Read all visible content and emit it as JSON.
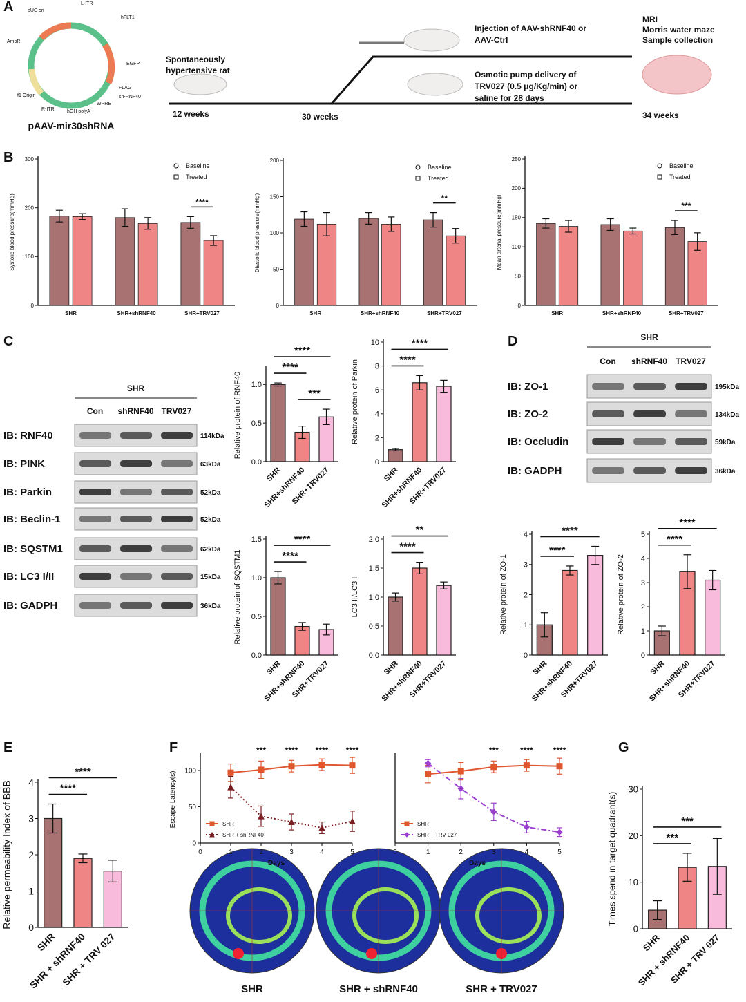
{
  "panels": [
    "A",
    "B",
    "C",
    "D",
    "E",
    "F",
    "G"
  ],
  "schematic": {
    "plasmid_name": "pAAV-mir30shRNA",
    "plasmid_labels": [
      "pUC ori",
      "L-ITR",
      "hFLT1",
      "EGFP",
      "FLAG",
      "sh-RNF40",
      "WPRE",
      "hGH polyA",
      "R-ITR",
      "f1 Origin",
      "AmpR"
    ],
    "rat_label": [
      "Spontaneously",
      "hypertensive rat"
    ],
    "weeks": [
      "12 weeks",
      "30 weeks",
      "34 weeks"
    ],
    "injection": [
      "Injection of AAV-shRNF40 or",
      "AAV-Ctrl"
    ],
    "pump": [
      "Osmotic pump delivery of",
      "TRV027 (0.5 μg/Kg/min) or",
      "saline for 28 days"
    ],
    "outcomes": [
      "MRI",
      "Morris water maze",
      "Sample collection"
    ]
  },
  "blots_c": {
    "group": "SHR",
    "lanes": [
      "Con",
      "shRNF40",
      "TRV027"
    ],
    "rows": [
      {
        "label": "IB: RNF40",
        "size": "114kDa"
      },
      {
        "label": "IB: PINK",
        "size": "63kDa"
      },
      {
        "label": "IB: Parkin",
        "size": "52kDa"
      },
      {
        "label": "IB: Beclin-1",
        "size": "52kDa"
      },
      {
        "label": "IB: SQSTM1",
        "size": "62kDa"
      },
      {
        "label": "IB: LC3 I/II",
        "size": "15kDa"
      },
      {
        "label": "IB: GADPH",
        "size": "36kDa"
      }
    ]
  },
  "blots_d": {
    "group": "SHR",
    "lanes": [
      "Con",
      "shRNF40",
      "TRV027"
    ],
    "rows": [
      {
        "label": "IB: ZO-1",
        "size": "195kDa"
      },
      {
        "label": "IB: ZO-2",
        "size": "134kDa"
      },
      {
        "label": "IB: Occludin",
        "size": "59kDa"
      },
      {
        "label": "IB: GADPH",
        "size": "36kDa"
      }
    ]
  },
  "heatmaps": [
    "SHR",
    "SHR + shRNF40",
    "SHR + TRV027"
  ],
  "chart_data": [
    {
      "type": "grouped_bar",
      "ylabel": "Systolic blood pressure(mmHg)",
      "categories": [
        "SHR",
        "SHR+shRNF40",
        "SHR+TRV027"
      ],
      "series": [
        {
          "name": "Baseline",
          "color": "#a87272",
          "marker": "circle",
          "values": [
            183,
            180,
            170
          ],
          "errors": [
            12,
            18,
            12
          ]
        },
        {
          "name": "Treated",
          "color": "#f08585",
          "marker": "square",
          "values": [
            182,
            168,
            133
          ],
          "errors": [
            6,
            12,
            10
          ]
        }
      ],
      "ylim": [
        0,
        300
      ],
      "yticks": [
        0,
        100,
        200,
        300
      ],
      "annotations": [
        {
          "text": "****",
          "category": "SHR+TRV027"
        }
      ]
    },
    {
      "type": "grouped_bar",
      "ylabel": "Diastolic blood pressure(mmHg)",
      "categories": [
        "SHR",
        "SHR+shRNF40",
        "SHR+TRV027"
      ],
      "series": [
        {
          "name": "Baseline",
          "color": "#a87272",
          "marker": "circle",
          "values": [
            119,
            120,
            118
          ],
          "errors": [
            10,
            8,
            10
          ]
        },
        {
          "name": "Treated",
          "color": "#f08585",
          "marker": "square",
          "values": [
            112,
            112,
            96
          ],
          "errors": [
            16,
            10,
            10
          ]
        }
      ],
      "ylim": [
        0,
        200
      ],
      "yticks": [
        0,
        50,
        100,
        150,
        200
      ],
      "annotations": [
        {
          "text": "**",
          "category": "SHR+TRV027"
        }
      ]
    },
    {
      "type": "grouped_bar",
      "ylabel": "Mean arterial pressure(mmHg)",
      "categories": [
        "SHR",
        "SHR+shRNF40",
        "SHR+TRV027"
      ],
      "series": [
        {
          "name": "Baseline",
          "color": "#a87272",
          "marker": "circle",
          "values": [
            140,
            138,
            133
          ],
          "errors": [
            8,
            10,
            12
          ]
        },
        {
          "name": "Treated",
          "color": "#f08585",
          "marker": "square",
          "values": [
            135,
            127,
            109
          ],
          "errors": [
            10,
            5,
            15
          ]
        }
      ],
      "ylim": [
        0,
        250
      ],
      "yticks": [
        0,
        50,
        100,
        150,
        200,
        250
      ],
      "annotations": [
        {
          "text": "***",
          "category": "SHR+TRV027"
        }
      ]
    },
    {
      "type": "bar",
      "ylabel": "Relative protein of  RNF40",
      "categories": [
        "SHR",
        "SHR+shRNF40",
        "SHR+TRV027"
      ],
      "values": [
        1.0,
        0.38,
        0.58
      ],
      "errors": [
        0.02,
        0.08,
        0.1
      ],
      "colors": [
        "#a87272",
        "#f08585",
        "#f9bbdc"
      ],
      "ylim": [
        0,
        1.2
      ],
      "yticks": [
        {
          "value": 0,
          "label": "0.0"
        },
        0.5,
        {
          "value": 1,
          "label": "1.0"
        }
      ],
      "annotations": [
        {
          "text": "****",
          "between": [
            "SHR",
            "SHR+shRNF40"
          ]
        },
        {
          "text": "****",
          "between": [
            "SHR",
            "SHR+TRV027"
          ]
        },
        {
          "text": "***",
          "between": [
            "SHR+shRNF40",
            "SHR+TRV027"
          ]
        }
      ]
    },
    {
      "type": "bar",
      "ylabel": "Relative protein of  Parkin",
      "categories": [
        "SHR",
        "SHR+shRNF40",
        "SHR+TRV027"
      ],
      "values": [
        1.0,
        6.6,
        6.3
      ],
      "errors": [
        0.1,
        0.6,
        0.5
      ],
      "colors": [
        "#a87272",
        "#f08585",
        "#f9bbdc"
      ],
      "ylim": [
        0,
        10
      ],
      "yticks": [
        0,
        2,
        4,
        6,
        8,
        10
      ],
      "annotations": [
        {
          "text": "****",
          "between": [
            "SHR",
            "SHR+shRNF40"
          ]
        },
        {
          "text": "****",
          "between": [
            "SHR",
            "SHR+TRV027"
          ]
        }
      ]
    },
    {
      "type": "bar",
      "ylabel": "Relative protein of SQSTM1",
      "categories": [
        "SHR",
        "SHR+shRNF40",
        "SHR+TRV027"
      ],
      "values": [
        1.0,
        0.37,
        0.33
      ],
      "errors": [
        0.08,
        0.05,
        0.07
      ],
      "colors": [
        "#a87272",
        "#f08585",
        "#f9bbdc"
      ],
      "ylim": [
        0,
        1.5
      ],
      "yticks": [
        {
          "value": 0,
          "label": "0.0"
        },
        0.5,
        {
          "value": 1,
          "label": "1.0"
        },
        1.5
      ],
      "annotations": [
        {
          "text": "****",
          "between": [
            "SHR",
            "SHR+shRNF40"
          ]
        },
        {
          "text": "****",
          "between": [
            "SHR",
            "SHR+TRV027"
          ]
        }
      ]
    },
    {
      "type": "bar",
      "ylabel": "LC3 II/LC3 I",
      "categories": [
        "SHR",
        "SHR+shRNF40",
        "SHR+TRV027"
      ],
      "values": [
        1.0,
        1.5,
        1.2
      ],
      "errors": [
        0.07,
        0.1,
        0.06
      ],
      "colors": [
        "#a87272",
        "#f08585",
        "#f9bbdc"
      ],
      "ylim": [
        0,
        2
      ],
      "yticks": [
        {
          "value": 0,
          "label": "0.0"
        },
        0.5,
        {
          "value": 1,
          "label": "1.0"
        },
        1.5,
        {
          "value": 2,
          "label": "2.0"
        }
      ],
      "annotations": [
        {
          "text": "****",
          "between": [
            "SHR",
            "SHR+shRNF40"
          ]
        },
        {
          "text": "**",
          "between": [
            "SHR",
            "SHR+TRV027"
          ]
        }
      ]
    },
    {
      "type": "bar",
      "ylabel": "Relative protein of ZO-1",
      "categories": [
        "SHR",
        "SHR+shRNF40",
        "SHR+TRV027"
      ],
      "values": [
        1.0,
        2.8,
        3.3
      ],
      "errors": [
        0.4,
        0.15,
        0.3
      ],
      "colors": [
        "#a87272",
        "#f08585",
        "#f9bbdc"
      ],
      "ylim": [
        0,
        4
      ],
      "yticks": [
        0,
        1,
        2,
        3,
        4
      ],
      "annotations": [
        {
          "text": "****",
          "between": [
            "SHR",
            "SHR+shRNF40"
          ]
        },
        {
          "text": "****",
          "between": [
            "SHR",
            "SHR+TRV027"
          ]
        }
      ]
    },
    {
      "type": "bar",
      "ylabel": "Relative protein of ZO-2",
      "categories": [
        "SHR",
        "SHR+shRNF40",
        "SHR+TRV027"
      ],
      "values": [
        1.0,
        3.45,
        3.1
      ],
      "errors": [
        0.2,
        0.7,
        0.4
      ],
      "colors": [
        "#a87272",
        "#f08585",
        "#f9bbdc"
      ],
      "ylim": [
        0,
        5
      ],
      "yticks": [
        0,
        1,
        2,
        3,
        4,
        5
      ],
      "annotations": [
        {
          "text": "****",
          "between": [
            "SHR",
            "SHR+shRNF40"
          ]
        },
        {
          "text": "****",
          "between": [
            "SHR",
            "SHR+TRV027"
          ]
        }
      ]
    },
    {
      "type": "bar",
      "ylabel": "Relative permeability Index of BBB",
      "categories": [
        "SHR",
        "SHR + shRNF40",
        "SHR + TRV 027"
      ],
      "values": [
        3.0,
        1.9,
        1.55
      ],
      "errors": [
        0.4,
        0.12,
        0.3
      ],
      "colors": [
        "#a87272",
        "#f08585",
        "#f9bbdc"
      ],
      "ylim": [
        0,
        4
      ],
      "yticks": [
        0,
        1,
        2,
        3,
        4
      ],
      "annotations": [
        {
          "text": "****",
          "between": [
            "SHR",
            "SHR + shRNF40"
          ]
        },
        {
          "text": "****",
          "between": [
            "SHR",
            "SHR + TRV 027"
          ]
        }
      ]
    },
    {
      "type": "line",
      "ylabel": "Escape Latency(s)",
      "xlabel": "Days",
      "x": [
        1,
        2,
        3,
        4,
        5
      ],
      "series": [
        {
          "name": "SHR",
          "color": "#e0562e",
          "marker": "square",
          "line_style": "solid",
          "values": [
            97,
            101,
            106,
            108,
            107
          ],
          "errors": [
            12,
            12,
            8,
            8,
            11
          ]
        },
        {
          "name": "SHR + shRNF40",
          "color": "#7a1e22",
          "marker": "triangle",
          "line_style": "dotted",
          "values": [
            77,
            37,
            29,
            21,
            30
          ],
          "errors": [
            15,
            14,
            11,
            8,
            14
          ]
        }
      ],
      "xlim": [
        0,
        5
      ],
      "xticks": [
        0,
        1,
        2,
        3,
        4,
        5
      ],
      "ylim": [
        0,
        120
      ],
      "yticks": [
        0,
        50,
        100
      ],
      "legend": "lower left",
      "annotations": [
        {
          "text": "***",
          "x": 2
        },
        {
          "text": "****",
          "x": 3
        },
        {
          "text": "****",
          "x": 4
        },
        {
          "text": "****",
          "x": 5
        }
      ]
    },
    {
      "type": "line",
      "ylabel": "",
      "xlabel": "Days",
      "x": [
        1,
        2,
        3,
        4,
        5
      ],
      "series": [
        {
          "name": "SHR",
          "color": "#e0562e",
          "marker": "square",
          "line_style": "solid",
          "values": [
            95,
            99,
            105,
            107,
            106
          ],
          "errors": [
            12,
            12,
            8,
            8,
            11
          ]
        },
        {
          "name": "SHR + TRV 027",
          "color": "#9b3fcf",
          "marker": "diamond",
          "line_style": "dashdot",
          "values": [
            110,
            75,
            43,
            22,
            15
          ],
          "errors": [
            5,
            14,
            12,
            8,
            6
          ]
        }
      ],
      "xlim": [
        0,
        5
      ],
      "xticks": [
        0,
        1,
        2,
        3,
        4,
        5
      ],
      "ylim": [
        0,
        120
      ],
      "yticks": [],
      "legend": "lower left",
      "annotations": [
        {
          "text": "***",
          "x": 3
        },
        {
          "text": "****",
          "x": 4
        },
        {
          "text": "****",
          "x": 5
        }
      ]
    },
    {
      "type": "bar",
      "ylabel": "Times spend in target quadrant(s)",
      "categories": [
        "SHR",
        "SHR + shRNF40",
        "SHR + TRV 027"
      ],
      "values": [
        4,
        13.2,
        13.4
      ],
      "errors": [
        2,
        3,
        6
      ],
      "colors": [
        "#a87272",
        "#f08585",
        "#f9bbdc"
      ],
      "ylim": [
        0,
        30
      ],
      "yticks": [
        0,
        10,
        20,
        30
      ],
      "annotations": [
        {
          "text": "***",
          "between": [
            "SHR",
            "SHR + shRNF40"
          ]
        },
        {
          "text": "***",
          "between": [
            "SHR",
            "SHR + TRV 027"
          ]
        }
      ]
    }
  ]
}
